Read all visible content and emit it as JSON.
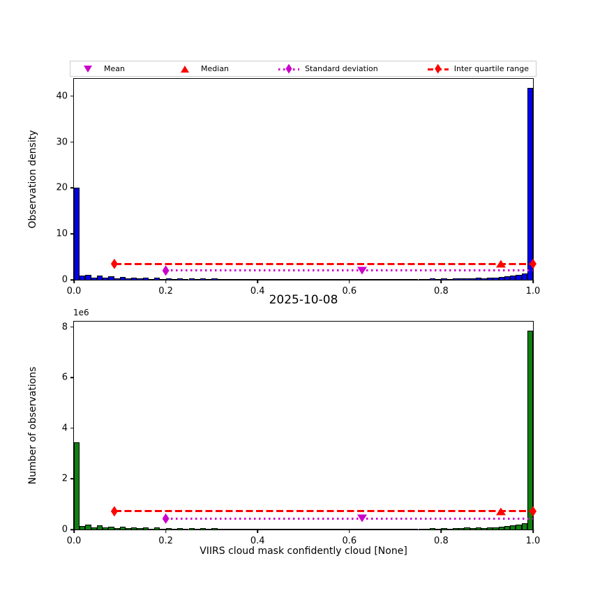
{
  "figure": {
    "title": "2025-10-08",
    "background": "#ffffff"
  },
  "legend": {
    "items": [
      {
        "label": "Mean",
        "marker": "triangle-down",
        "color": "#cc00cc"
      },
      {
        "label": "Median",
        "marker": "triangle-up",
        "color": "#ff0000"
      },
      {
        "label": "Standard deviation",
        "marker": "diamond-dotted-line",
        "color": "#cc00cc"
      },
      {
        "label": "Inter quartile range",
        "marker": "diamond-dashed-line",
        "color": "#ff0000"
      }
    ]
  },
  "chart_data": [
    {
      "type": "bar",
      "name": "observation-density-histogram",
      "ylabel": "Observation density",
      "xlabel": "",
      "bar_color": "#0000ee",
      "bar_edge_color": "#000000",
      "bin_start": 0,
      "bin_width": 0.0125,
      "xlim": [
        0,
        1.0
      ],
      "ylim": [
        0,
        43.8
      ],
      "xtick_labels": [
        "0.0",
        "0.2",
        "0.4",
        "0.6",
        "0.8",
        "1.0"
      ],
      "xtick_vals": [
        0,
        0.2,
        0.4,
        0.6,
        0.8,
        1.0
      ],
      "ytick_labels": [
        "0",
        "10",
        "20",
        "30",
        "40"
      ],
      "ytick_vals": [
        0,
        10,
        20,
        30,
        40
      ],
      "values": [
        20.1,
        0.85,
        1.05,
        0.4,
        0.95,
        0.4,
        0.7,
        0.35,
        0.55,
        0.3,
        0.5,
        0.25,
        0.45,
        0.2,
        0.4,
        0.2,
        0.35,
        0.18,
        0.3,
        0.15,
        0.3,
        0.15,
        0.28,
        0.12,
        0.25,
        0.12,
        0.22,
        0.1,
        0.2,
        0.1,
        0.2,
        0.1,
        0.18,
        0.1,
        0.18,
        0.08,
        0.15,
        0.08,
        0.15,
        0.08,
        0.15,
        0.08,
        0.15,
        0.1,
        0.15,
        0.1,
        0.15,
        0.1,
        0.15,
        0.1,
        0.15,
        0.1,
        0.18,
        0.1,
        0.18,
        0.12,
        0.2,
        0.12,
        0.2,
        0.15,
        0.22,
        0.15,
        0.25,
        0.18,
        0.28,
        0.2,
        0.3,
        0.25,
        0.35,
        0.3,
        0.4,
        0.35,
        0.5,
        0.45,
        0.6,
        0.7,
        0.9,
        1.1,
        1.4,
        41.8
      ],
      "stat_lines": [
        {
          "name": "inter-quartile-range",
          "x1": 0.088,
          "x2": 1.0,
          "y": 3.47,
          "color": "#ff0000",
          "dash": "dashed"
        },
        {
          "name": "standard-deviation",
          "x1": 0.2,
          "x2": 1.0,
          "y": 2.0,
          "color": "#cc00cc",
          "dash": "dotted"
        }
      ],
      "stat_markers": [
        {
          "name": "iqr-left-diamond",
          "x": 0.088,
          "y": 3.47,
          "shape": "diamond",
          "color": "#ff0000"
        },
        {
          "name": "iqr-right-diamond",
          "x": 1.0,
          "y": 3.47,
          "shape": "diamond",
          "color": "#ff0000"
        },
        {
          "name": "median-triangle",
          "x": 0.93,
          "y": 3.47,
          "shape": "triangle-up",
          "color": "#ff0000"
        },
        {
          "name": "std-left-diamond",
          "x": 0.2,
          "y": 2.0,
          "shape": "diamond",
          "color": "#cc00cc"
        },
        {
          "name": "mean-triangle",
          "x": 0.627,
          "y": 2.0,
          "shape": "triangle-down",
          "color": "#cc00cc"
        }
      ]
    },
    {
      "type": "bar",
      "name": "number-of-observations-histogram",
      "ylabel": "Number of observations",
      "xlabel": "VIIRS cloud mask confidently cloud [None]",
      "y_offset_text": "1e6",
      "bar_color": "#0f7f0f",
      "bar_edge_color": "#000000",
      "bin_start": 0,
      "bin_width": 0.0125,
      "xlim": [
        0,
        1.0
      ],
      "ylim": [
        0,
        8.22
      ],
      "xtick_labels": [
        "0.0",
        "0.2",
        "0.4",
        "0.6",
        "0.8",
        "1.0"
      ],
      "xtick_vals": [
        0,
        0.2,
        0.4,
        0.6,
        0.8,
        1.0
      ],
      "ytick_labels": [
        "0",
        "2",
        "4",
        "6",
        "8"
      ],
      "ytick_vals": [
        0,
        2,
        4,
        6,
        8
      ],
      "values": [
        3.45,
        0.15,
        0.19,
        0.07,
        0.17,
        0.07,
        0.12,
        0.06,
        0.1,
        0.05,
        0.09,
        0.05,
        0.08,
        0.04,
        0.07,
        0.04,
        0.06,
        0.03,
        0.06,
        0.03,
        0.05,
        0.03,
        0.05,
        0.02,
        0.05,
        0.02,
        0.04,
        0.02,
        0.04,
        0.02,
        0.04,
        0.02,
        0.03,
        0.02,
        0.03,
        0.015,
        0.03,
        0.015,
        0.03,
        0.015,
        0.03,
        0.015,
        0.03,
        0.02,
        0.03,
        0.02,
        0.03,
        0.02,
        0.03,
        0.02,
        0.03,
        0.02,
        0.03,
        0.02,
        0.03,
        0.02,
        0.04,
        0.02,
        0.04,
        0.03,
        0.04,
        0.03,
        0.05,
        0.03,
        0.05,
        0.04,
        0.06,
        0.05,
        0.07,
        0.05,
        0.08,
        0.06,
        0.09,
        0.08,
        0.11,
        0.13,
        0.16,
        0.2,
        0.26,
        7.85
      ],
      "stat_lines": [
        {
          "name": "inter-quartile-range",
          "x1": 0.088,
          "x2": 1.0,
          "y": 0.72,
          "color": "#ff0000",
          "dash": "dashed"
        },
        {
          "name": "standard-deviation",
          "x1": 0.2,
          "x2": 1.0,
          "y": 0.43,
          "color": "#cc00cc",
          "dash": "dotted"
        }
      ],
      "stat_markers": [
        {
          "name": "iqr-left-diamond",
          "x": 0.088,
          "y": 0.72,
          "shape": "diamond",
          "color": "#ff0000"
        },
        {
          "name": "iqr-right-diamond",
          "x": 1.0,
          "y": 0.72,
          "shape": "diamond",
          "color": "#ff0000"
        },
        {
          "name": "median-triangle",
          "x": 0.93,
          "y": 0.72,
          "shape": "triangle-up",
          "color": "#ff0000"
        },
        {
          "name": "std-left-diamond",
          "x": 0.2,
          "y": 0.43,
          "shape": "diamond",
          "color": "#cc00cc"
        },
        {
          "name": "mean-triangle",
          "x": 0.627,
          "y": 0.43,
          "shape": "triangle-down",
          "color": "#cc00cc"
        }
      ]
    }
  ]
}
